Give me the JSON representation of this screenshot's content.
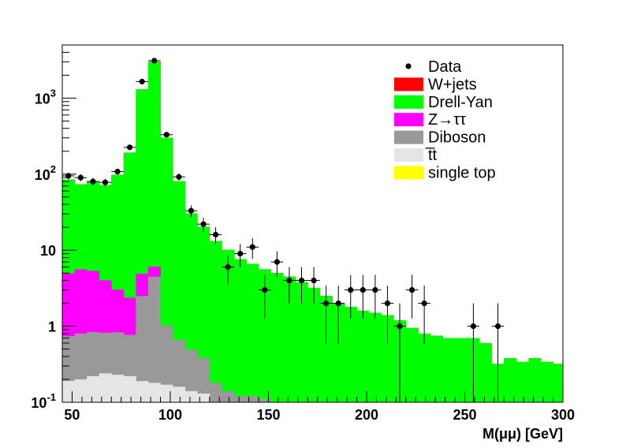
{
  "chart_data": {
    "type": "area",
    "stacked": true,
    "xlabel": "M(μμ) [GeV]",
    "ylabel": "",
    "xlim": [
      45,
      300
    ],
    "ylim": [
      0.1,
      5000
    ],
    "yscale": "log",
    "bin_width": 6.25,
    "bin_edges_start": 45,
    "x_ticks": [
      50,
      100,
      150,
      200,
      250,
      300
    ],
    "x_tick_labels": [
      "50",
      "100",
      "150",
      "200",
      "250",
      "300"
    ],
    "y_ticks": [
      0.1,
      1,
      10,
      100,
      1000
    ],
    "y_tick_labels": [
      {
        "base": "10",
        "exp": "-1"
      },
      {
        "base": "1",
        "exp": ""
      },
      {
        "base": "10",
        "exp": ""
      },
      {
        "base": "10",
        "exp": "2"
      },
      {
        "base": "10",
        "exp": "3"
      }
    ],
    "grid": false,
    "legend_position": "top-right",
    "stack_order": [
      "single top",
      "t̅t",
      "Diboson",
      "Z→ττ",
      "Drell-Yan",
      "W+jets"
    ],
    "series": [
      {
        "name": "W+jets",
        "color": "#ff0000",
        "values": [
          0,
          0,
          0,
          0,
          0,
          0,
          0,
          0,
          0,
          0,
          0,
          0,
          0,
          0,
          0,
          0,
          0,
          0,
          0,
          0,
          0,
          0,
          0,
          0,
          0,
          0,
          0,
          0,
          0,
          0,
          0,
          0,
          0,
          0,
          0,
          0,
          0,
          0,
          0,
          0,
          0
        ]
      },
      {
        "name": "Drell-Yan",
        "color": "#00ff00",
        "values": [
          80,
          68,
          75,
          68,
          95,
          190,
          1300,
          3000,
          300,
          80,
          30,
          20,
          13,
          10,
          7.5,
          6.5,
          5.5,
          5,
          4.5,
          3.8,
          3.2,
          2.5,
          2,
          1.8,
          1.6,
          1.5,
          1.4,
          1.2,
          0.95,
          0.8,
          0.75,
          0.7,
          0.7,
          0.7,
          0.6,
          0.32,
          0.38,
          0.34,
          0.38,
          0.34,
          0.32
        ]
      },
      {
        "name": "Z→ττ",
        "color": "#ff00ff",
        "values": [
          4.2,
          4.8,
          4.5,
          3.2,
          2.2,
          1.6,
          2.4,
          1.6,
          0,
          0,
          0,
          0,
          0,
          0,
          0,
          0,
          0,
          0,
          0,
          0,
          0,
          0,
          0,
          0,
          0,
          0,
          0,
          0,
          0,
          0,
          0,
          0,
          0,
          0,
          0,
          0,
          0,
          0,
          0,
          0,
          0
        ]
      },
      {
        "name": "Diboson",
        "color": "#999999",
        "values": [
          0.55,
          0.6,
          0.62,
          0.58,
          0.6,
          0.55,
          2.3,
          4.3,
          0.85,
          0.5,
          0.35,
          0.25,
          0.18,
          0.14,
          0.12,
          0.12,
          0.11,
          0,
          0,
          0,
          0,
          0,
          0,
          0,
          0,
          0,
          0,
          0,
          0,
          0,
          0,
          0,
          0,
          0,
          0,
          0,
          0,
          0,
          0,
          0,
          0
        ]
      },
      {
        "name": "t̅t",
        "color": "#e5e5e5",
        "values": [
          0.19,
          0.2,
          0.22,
          0.24,
          0.23,
          0.22,
          0.19,
          0.18,
          0.17,
          0.16,
          0.14,
          0.13,
          0,
          0,
          0,
          0,
          0,
          0,
          0,
          0,
          0,
          0,
          0,
          0,
          0,
          0,
          0,
          0,
          0,
          0,
          0,
          0,
          0,
          0,
          0,
          0,
          0,
          0,
          0,
          0,
          0
        ]
      },
      {
        "name": "single top",
        "color": "#ffff00",
        "values": [
          0,
          0,
          0,
          0,
          0,
          0,
          0,
          0,
          0,
          0,
          0,
          0,
          0,
          0,
          0,
          0,
          0,
          0,
          0,
          0,
          0,
          0,
          0,
          0,
          0,
          0,
          0,
          0,
          0,
          0,
          0,
          0,
          0,
          0,
          0,
          0,
          0,
          0,
          0,
          0,
          0
        ]
      }
    ],
    "data_points": {
      "name": "Data",
      "x": [
        48.125,
        54.375,
        60.625,
        66.875,
        73.125,
        79.375,
        85.625,
        91.875,
        98.125,
        104.375,
        110.625,
        116.875,
        123.125,
        129.375,
        135.625,
        141.875,
        148.125,
        154.375,
        160.625,
        166.875,
        173.125,
        179.375,
        185.625,
        191.875,
        198.125,
        204.375,
        210.625,
        216.875,
        223.125,
        229.375,
        235.625,
        241.875,
        248.125,
        254.375,
        260.625,
        266.875,
        273.125,
        279.375,
        285.625,
        291.875,
        298.125
      ],
      "y": [
        95,
        90,
        80,
        78,
        108,
        225,
        1650,
        3100,
        330,
        92,
        33,
        22,
        16,
        6,
        9,
        11,
        3,
        7,
        4,
        4,
        4,
        2,
        2,
        3,
        3,
        3,
        2,
        1,
        3,
        2,
        0,
        0,
        0,
        1,
        0,
        1,
        0,
        0,
        0,
        0,
        0
      ]
    }
  },
  "legend": {
    "items": [
      {
        "label": "Data",
        "kind": "marker",
        "color": "#000000"
      },
      {
        "label": "W+jets",
        "kind": "box",
        "color": "#ff0000"
      },
      {
        "label": "Drell-Yan",
        "kind": "box",
        "color": "#00ff00"
      },
      {
        "label": "Z→ττ",
        "kind": "box",
        "color": "#ff00ff"
      },
      {
        "label": "Diboson",
        "kind": "box",
        "color": "#999999"
      },
      {
        "label": "t̅t",
        "kind": "box",
        "color": "#e5e5e5"
      },
      {
        "label": "single top",
        "kind": "box",
        "color": "#ffff00"
      }
    ]
  }
}
